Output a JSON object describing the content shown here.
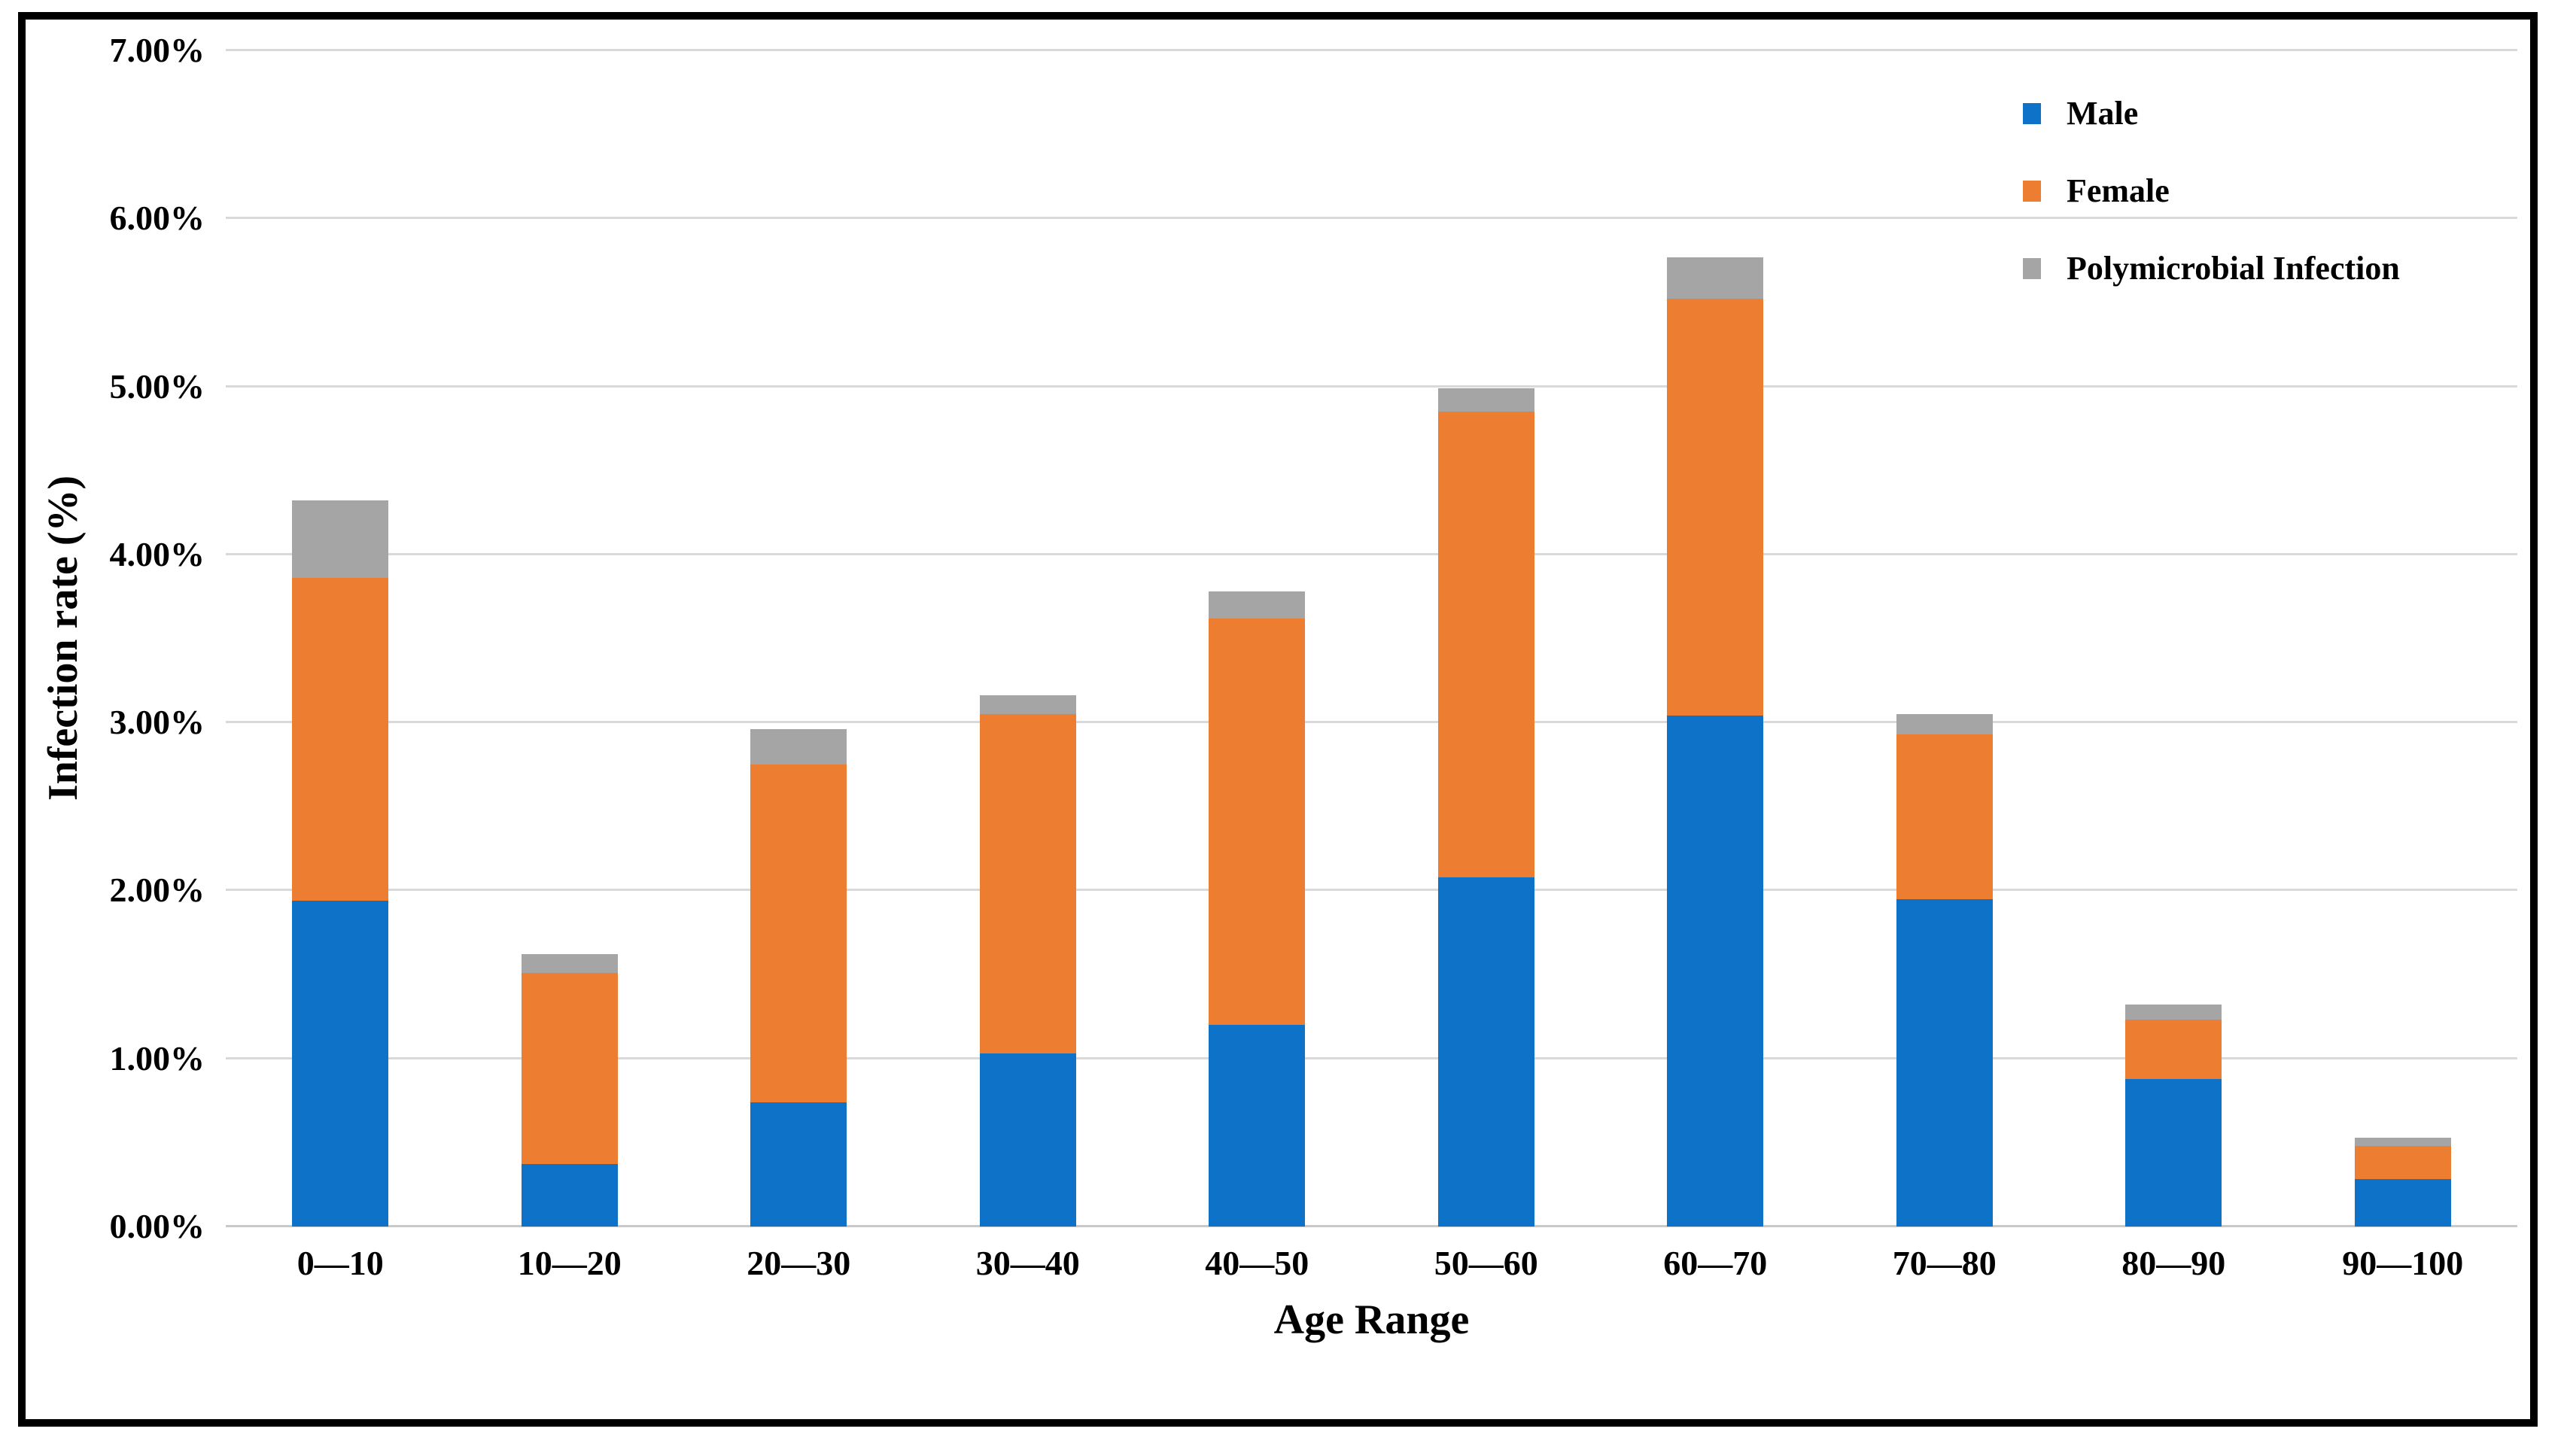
{
  "figure": {
    "background_color": "#ffffff",
    "border_color": "#000000",
    "gridline_color": "#d9d9d9",
    "text_color": "#000000"
  },
  "chart_data": {
    "type": "bar",
    "stacked": true,
    "title": "",
    "xlabel": "Age Range",
    "ylabel": "Infection rate (%)",
    "categories": [
      "0—10",
      "10—20",
      "20—30",
      "30—40",
      "40—50",
      "50—60",
      "60—70",
      "70—80",
      "80—90",
      "90—100"
    ],
    "series": [
      {
        "name": "Male",
        "color": "#0d72c8",
        "values": [
          1.94,
          0.37,
          0.74,
          1.03,
          1.2,
          2.08,
          3.04,
          1.95,
          0.88,
          0.28
        ]
      },
      {
        "name": "Female",
        "color": "#ed7d31",
        "values": [
          1.92,
          1.14,
          2.01,
          2.02,
          2.42,
          2.77,
          2.48,
          0.98,
          0.35,
          0.2
        ]
      },
      {
        "name": "Polymicrobial Infection",
        "color": "#a5a5a5",
        "values": [
          0.46,
          0.11,
          0.21,
          0.11,
          0.16,
          0.14,
          0.25,
          0.12,
          0.09,
          0.05
        ]
      }
    ],
    "stack_totals": [
      4.32,
      1.62,
      2.96,
      3.16,
      3.78,
      4.99,
      5.77,
      3.05,
      1.32,
      0.53
    ],
    "ylim": [
      0,
      7
    ],
    "ytick_step": 1,
    "ytick_labels": [
      "0.00%",
      "1.00%",
      "2.00%",
      "3.00%",
      "4.00%",
      "5.00%",
      "6.00%",
      "7.00%"
    ],
    "grid": true,
    "legend_position": "upper-right"
  }
}
